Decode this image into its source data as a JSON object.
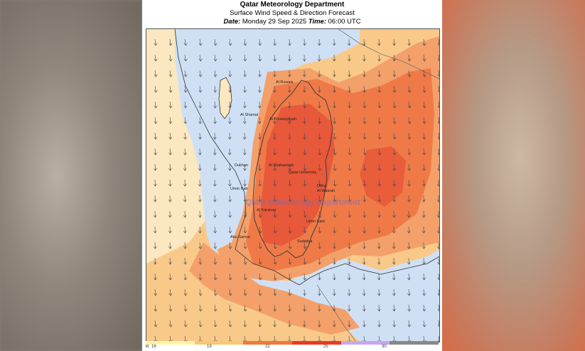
{
  "header": {
    "title": "Qatar Meteorology Department",
    "subtitle": "Surface Wind Speed & Direction Forecast",
    "date_label": "Date:",
    "date_value": "Monday 29 Sep 2025",
    "time_label": "Time:",
    "time_value": "06:00 UTC"
  },
  "watermark": "Qatar Meteorology Department",
  "places": [
    "Al Ruwais",
    "Al Shamal",
    "Al Khuwayriyah",
    "Al Shahaniyah",
    "Qatar University",
    "Dukhan",
    "Umm Bab",
    "Doha",
    "Al Wakrah",
    "Al Karanaa",
    "Umm Said",
    "Abu Samra",
    "Sudaitya"
  ],
  "legend": {
    "unit": "kt",
    "ticks": [
      "16",
      "19",
      "22",
      "25",
      "30"
    ],
    "colors": [
      "#fdf6a8",
      "#f8c970",
      "#f07a38",
      "#e83a24",
      "#c7a6ee",
      "#888888"
    ]
  },
  "colors": {
    "sea": "#cfe0f5",
    "calm_land": "#fbe7c0",
    "light": "#f9c98a",
    "moderate": "#f4a06a",
    "strong": "#ef7a48",
    "stronger": "#e8583a"
  }
}
